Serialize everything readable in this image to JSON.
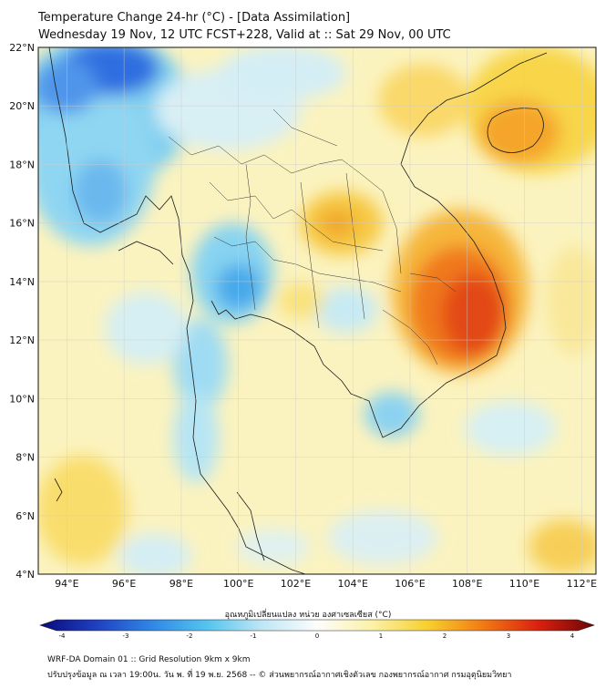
{
  "header": {
    "title": "Temperature Change 24-hr (°C) - [Data Assimilation]",
    "subtitle": "Wednesday 19 Nov, 12 UTC FCST+228, Valid at :: Sat 29 Nov, 00 UTC"
  },
  "map": {
    "lat_labels": [
      "22°N",
      "20°N",
      "18°N",
      "16°N",
      "14°N",
      "12°N",
      "10°N",
      "8°N",
      "6°N",
      "4°N"
    ],
    "lon_labels": [
      "94°E",
      "96°E",
      "98°E",
      "100°E",
      "102°E",
      "104°E",
      "106°E",
      "108°E",
      "110°E",
      "112°E"
    ],
    "lat_range": [
      4,
      22
    ],
    "lon_range": [
      93,
      112.5
    ],
    "grid": true
  },
  "colorbar": {
    "label": "อุณหภูมิเปลี่ยนแปลง หน่วย องศาเซลเซียส (°C)",
    "ticks": [
      "-4",
      "-3",
      "-2",
      "-1",
      "0",
      "1",
      "2",
      "3",
      "4"
    ],
    "range": [
      -4,
      4
    ],
    "colors": [
      "#0a0a7a",
      "#1f3fc0",
      "#2f86e6",
      "#53c4ef",
      "#bfe6f5",
      "#fdfdfd",
      "#fbf1a6",
      "#f8cf2e",
      "#f27a13",
      "#d9200f",
      "#6b0606"
    ]
  },
  "footer": {
    "line1": "WRF-DA Domain 01 :: Grid Resolution 9km x 9km",
    "line2": "ปรับปรุงข้อมูล ณ เวลา 19:00น. วัน พ. ที่ 19 พ.ย. 2568 -- © ส่วนพยากรณ์อากาศเชิงตัวเลข กองพยากรณ์อากาศ กรมอุตุนิยมวิทยา"
  }
}
